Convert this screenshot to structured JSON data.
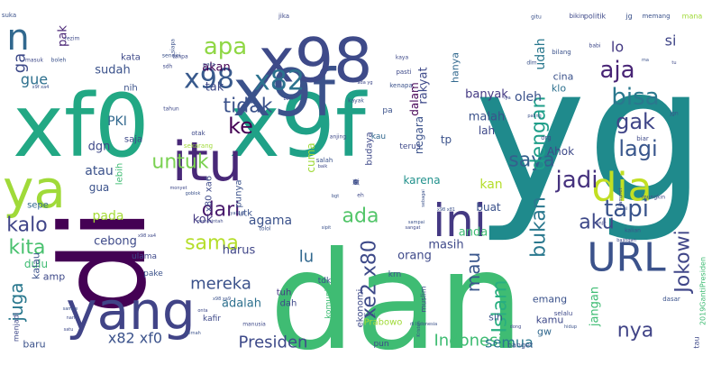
{
  "words": [
    {
      "text": "yg",
      "size": 210,
      "rot": 0,
      "color": "#1f8a8c"
    },
    {
      "text": "dan",
      "size": 150,
      "rot": 0,
      "color": "#3fbc73"
    },
    {
      "text": "xf0",
      "size": 96,
      "rot": 0,
      "color": "#22a884"
    },
    {
      "text": "x9f",
      "size": 96,
      "rot": 0,
      "color": "#1fa187"
    },
    {
      "text": "x9f",
      "size": 72,
      "rot": 0,
      "color": "#3b528b"
    },
    {
      "text": "x98",
      "size": 68,
      "rot": 0,
      "color": "#3e4a89"
    },
    {
      "text": "di",
      "size": 130,
      "rot": 90,
      "color": "#440154"
    },
    {
      "text": "itu",
      "size": 60,
      "rot": 0,
      "color": "#482878"
    },
    {
      "text": "ya",
      "size": 58,
      "rot": 0,
      "color": "#a0da39"
    },
    {
      "text": "yang",
      "size": 58,
      "rot": 0,
      "color": "#414487"
    },
    {
      "text": "ini",
      "size": 50,
      "rot": 0,
      "color": "#443983"
    },
    {
      "text": "dia",
      "size": 44,
      "rot": 0,
      "color": "#c2df23"
    },
    {
      "text": "URL",
      "size": 44,
      "rot": 0,
      "color": "#3b528b"
    },
    {
      "text": "n",
      "size": 40,
      "rot": 0,
      "color": "#31688e"
    },
    {
      "text": "x98",
      "size": 30,
      "rot": 0,
      "color": "#38598c"
    },
    {
      "text": "x82",
      "size": 30,
      "rot": 0,
      "color": "#2c728e"
    },
    {
      "text": "apa",
      "size": 26,
      "rot": 0,
      "color": "#8fd744"
    },
    {
      "text": "aja",
      "size": 26,
      "rot": 0,
      "color": "#482475"
    },
    {
      "text": "bisa",
      "size": 26,
      "rot": 0,
      "color": "#2a788e"
    },
    {
      "text": "gak",
      "size": 24,
      "rot": 0,
      "color": "#404688"
    },
    {
      "text": "lagi",
      "size": 24,
      "rot": 0,
      "color": "#39568c"
    },
    {
      "text": "jadi",
      "size": 26,
      "rot": 0,
      "color": "#46327e"
    },
    {
      "text": "tapi",
      "size": 26,
      "rot": 0,
      "color": "#3a548c"
    },
    {
      "text": "saya",
      "size": 22,
      "rot": 0,
      "color": "#34608d"
    },
    {
      "text": "ke",
      "size": 24,
      "rot": 0,
      "color": "#440154"
    },
    {
      "text": "tidak",
      "size": 22,
      "rot": 0,
      "color": "#3b528b"
    },
    {
      "text": "untuk",
      "size": 22,
      "rot": 0,
      "color": "#7ad151"
    },
    {
      "text": "dari",
      "size": 22,
      "rot": 0,
      "color": "#481a6c"
    },
    {
      "text": "ada",
      "size": 22,
      "rot": 0,
      "color": "#52c569"
    },
    {
      "text": "aku",
      "size": 22,
      "rot": 0,
      "color": "#3e4989"
    },
    {
      "text": "kalo",
      "size": 22,
      "rot": 0,
      "color": "#404588"
    },
    {
      "text": "kita",
      "size": 22,
      "rot": 0,
      "color": "#48c16e"
    },
    {
      "text": "sama",
      "size": 22,
      "rot": 0,
      "color": "#b5de2b"
    },
    {
      "text": "mereka",
      "size": 18,
      "rot": 0,
      "color": "#3b528b"
    },
    {
      "text": "Indonesia",
      "size": 18,
      "rot": 0,
      "color": "#3fbc73"
    },
    {
      "text": "Presiden",
      "size": 18,
      "rot": 0,
      "color": "#3e4a89"
    },
    {
      "text": "semua",
      "size": 16,
      "rot": 0,
      "color": "#2a788e"
    },
    {
      "text": "nya",
      "size": 22,
      "rot": 0,
      "color": "#414487"
    },
    {
      "text": "x82 xf0",
      "size": 16,
      "rot": 0,
      "color": "#3b528b"
    },
    {
      "text": "dengan",
      "size": 22,
      "rot": 90,
      "color": "#1f9e89"
    },
    {
      "text": "bukan",
      "size": 22,
      "rot": 90,
      "color": "#2a788e"
    },
    {
      "text": "Islam",
      "size": 22,
      "rot": 90,
      "color": "#28ae80"
    },
    {
      "text": "mau",
      "size": 20,
      "rot": 90,
      "color": "#39568c"
    },
    {
      "text": "xe2 x80",
      "size": 22,
      "rot": 90,
      "color": "#3e4a89"
    },
    {
      "text": "Jokowi",
      "size": 22,
      "rot": 90,
      "color": "#404688"
    },
    {
      "text": "juga",
      "size": 20,
      "rot": 90,
      "color": "#2a788e"
    },
    {
      "text": "gue",
      "size": 16,
      "rot": 0,
      "color": "#2d708e"
    },
    {
      "text": "ga",
      "size": 18,
      "rot": 90,
      "color": "#3e4a89"
    },
    {
      "text": "pak",
      "size": 13,
      "rot": 90,
      "color": "#482475"
    },
    {
      "text": "sudah",
      "size": 13,
      "rot": 0,
      "color": "#3b528b"
    },
    {
      "text": "akan",
      "size": 13,
      "rot": 0,
      "color": "#440154"
    },
    {
      "text": "tak",
      "size": 13,
      "rot": 0,
      "color": "#3e4989"
    },
    {
      "text": "oleh",
      "size": 14,
      "rot": 0,
      "color": "#3b528b"
    },
    {
      "text": "udah",
      "size": 14,
      "rot": 90,
      "color": "#2a788e"
    },
    {
      "text": "lo",
      "size": 16,
      "rot": 0,
      "color": "#443983"
    },
    {
      "text": "si",
      "size": 16,
      "rot": 0,
      "color": "#404688"
    },
    {
      "text": "atau",
      "size": 14,
      "rot": 0,
      "color": "#3b528b"
    },
    {
      "text": "pada",
      "size": 14,
      "rot": 0,
      "color": "#a5db36"
    },
    {
      "text": "dulu",
      "size": 12,
      "rot": 0,
      "color": "#3fbc73"
    },
    {
      "text": "PKI",
      "size": 14,
      "rot": 0,
      "color": "#31688e"
    },
    {
      "text": "dgn",
      "size": 13,
      "rot": 0,
      "color": "#3e4989"
    },
    {
      "text": "gua",
      "size": 12,
      "rot": 0,
      "color": "#3b528b"
    },
    {
      "text": "cebong",
      "size": 13,
      "rot": 0,
      "color": "#3e4a89"
    },
    {
      "text": "kok",
      "size": 13,
      "rot": 0,
      "color": "#443983"
    },
    {
      "text": "agama",
      "size": 14,
      "rot": 0,
      "color": "#3b528b"
    },
    {
      "text": "orang",
      "size": 13,
      "rot": 0,
      "color": "#3e4989"
    },
    {
      "text": "adalah",
      "size": 13,
      "rot": 0,
      "color": "#2d708e"
    },
    {
      "text": "harus",
      "size": 13,
      "rot": 0,
      "color": "#404688"
    },
    {
      "text": "anda",
      "size": 13,
      "rot": 0,
      "color": "#3fbc73"
    },
    {
      "text": "masih",
      "size": 13,
      "rot": 0,
      "color": "#3e4989"
    },
    {
      "text": "buat",
      "size": 12,
      "rot": 0,
      "color": "#3b528b"
    },
    {
      "text": "karena",
      "size": 12,
      "rot": 0,
      "color": "#21918c"
    },
    {
      "text": "negara",
      "size": 12,
      "rot": 90,
      "color": "#3b528b"
    },
    {
      "text": "dalam",
      "size": 12,
      "rot": 90,
      "color": "#440154"
    },
    {
      "text": "rakyat",
      "size": 13,
      "rot": 90,
      "color": "#3e4989"
    },
    {
      "text": "hanya",
      "size": 11,
      "rot": 90,
      "color": "#31688e"
    },
    {
      "text": "banyak",
      "size": 13,
      "rot": 0,
      "color": "#443983"
    },
    {
      "text": "malah",
      "size": 13,
      "rot": 0,
      "color": "#3b528b"
    },
    {
      "text": "lah",
      "size": 12,
      "rot": 0,
      "color": "#3e4989"
    },
    {
      "text": "cina",
      "size": 11,
      "rot": 0,
      "color": "#3b528b"
    },
    {
      "text": "klo",
      "size": 11,
      "rot": 0,
      "color": "#2d708e"
    },
    {
      "text": "Ahok",
      "size": 12,
      "rot": 0,
      "color": "#3e4a89"
    },
    {
      "text": "kan",
      "size": 14,
      "rot": 0,
      "color": "#b5de2b"
    },
    {
      "text": "jangan",
      "size": 13,
      "rot": 90,
      "color": "#3fbc73"
    },
    {
      "text": "emang",
      "size": 11,
      "rot": 0,
      "color": "#3b528b"
    },
    {
      "text": "kamu",
      "size": 11,
      "rot": 0,
      "color": "#3e4989"
    },
    {
      "text": "lu",
      "size": 18,
      "rot": 0,
      "color": "#31688e"
    },
    {
      "text": "sih",
      "size": 11,
      "rot": 0,
      "color": "#3b528b"
    },
    {
      "text": "tuh",
      "size": 10,
      "rot": 0,
      "color": "#443983"
    },
    {
      "text": "dah",
      "size": 10,
      "rot": 0,
      "color": "#3e4989"
    },
    {
      "text": "komunis",
      "size": 9,
      "rot": 90,
      "color": "#3fbc73"
    },
    {
      "text": "ekonomi",
      "size": 10,
      "rot": 90,
      "color": "#3e4989"
    },
    {
      "text": "tdk",
      "size": 9,
      "rot": 0,
      "color": "#3b528b"
    },
    {
      "text": "cuma",
      "size": 12,
      "rot": 90,
      "color": "#a0da39"
    },
    {
      "text": "budaya",
      "size": 10,
      "rot": 90,
      "color": "#3e4989"
    },
    {
      "text": "tp",
      "size": 12,
      "rot": 0,
      "color": "#3b528b"
    },
    {
      "text": "terus",
      "size": 9,
      "rot": 0,
      "color": "#3e4989"
    },
    {
      "text": "kau",
      "size": 9,
      "rot": 0,
      "color": "#31688e"
    },
    {
      "text": "pa",
      "size": 9,
      "rot": 0,
      "color": "#3b528b"
    },
    {
      "text": "lebih",
      "size": 10,
      "rot": 90,
      "color": "#3fbc73"
    },
    {
      "text": "kata",
      "size": 10,
      "rot": 0,
      "color": "#3e4989"
    },
    {
      "text": "nih",
      "size": 10,
      "rot": 0,
      "color": "#3b528b"
    },
    {
      "text": "saja",
      "size": 10,
      "rot": 0,
      "color": "#3e4989"
    },
    {
      "text": "punya",
      "size": 10,
      "rot": 90,
      "color": "#3b528b"
    },
    {
      "text": "x80 xa6",
      "size": 10,
      "rot": 90,
      "color": "#3e4a89"
    },
    {
      "text": "utk",
      "size": 10,
      "rot": 0,
      "color": "#3b528b"
    },
    {
      "text": "amp",
      "size": 11,
      "rot": 0,
      "color": "#3e4989"
    },
    {
      "text": "sepe",
      "size": 10,
      "rot": 0,
      "color": "#31688e"
    },
    {
      "text": "kalau",
      "size": 11,
      "rot": 90,
      "color": "#3b528b"
    },
    {
      "text": "ulama",
      "size": 9,
      "rot": 0,
      "color": "#3e4989"
    },
    {
      "text": "pake",
      "size": 9,
      "rot": 0,
      "color": "#3b528b"
    },
    {
      "text": "menjadi",
      "size": 8,
      "rot": 90,
      "color": "#3e4989"
    },
    {
      "text": "baru",
      "size": 11,
      "rot": 0,
      "color": "#3b528b"
    },
    {
      "text": "kafir",
      "size": 9,
      "rot": 0,
      "color": "#3e4989"
    },
    {
      "text": "Prabowo",
      "size": 10,
      "rot": 0,
      "color": "#a0da39"
    },
    {
      "text": "pun",
      "size": 9,
      "rot": 0,
      "color": "#3e4989"
    },
    {
      "text": "gw",
      "size": 11,
      "rot": 0,
      "color": "#31688e"
    },
    {
      "text": "krn",
      "size": 9,
      "rot": 0,
      "color": "#3b528b"
    },
    {
      "text": "muslim",
      "size": 8,
      "rot": 90,
      "color": "#3e4989"
    },
    {
      "text": "banget",
      "size": 8,
      "rot": 0,
      "color": "#3b528b"
    },
    {
      "text": "selalu",
      "size": 7,
      "rot": 0,
      "color": "#3e4989"
    },
    {
      "text": "2019GantiPresiden",
      "size": 8,
      "rot": 90,
      "color": "#3fbc73"
    },
    {
      "text": "tau",
      "size": 8,
      "rot": 90,
      "color": "#3e4989"
    },
    {
      "text": "jg",
      "size": 8,
      "rot": 0,
      "color": "#3b528b"
    },
    {
      "text": "politik",
      "size": 8,
      "rot": 0,
      "color": "#3e4989"
    },
    {
      "text": "memang",
      "size": 7,
      "rot": 0,
      "color": "#3b528b"
    },
    {
      "text": "bikin",
      "size": 7,
      "rot": 0,
      "color": "#3e4989"
    },
    {
      "text": "mana",
      "size": 8,
      "rot": 0,
      "color": "#a0da39"
    },
    {
      "text": "jika",
      "size": 7,
      "rot": 0,
      "color": "#3e4989"
    },
    {
      "text": "bilang",
      "size": 7,
      "rot": 0,
      "color": "#3b528b"
    },
    {
      "text": "pasti",
      "size": 7,
      "rot": 0,
      "color": "#3e4989"
    },
    {
      "text": "kenapa",
      "size": 7,
      "rot": 0,
      "color": "#3b528b"
    },
    {
      "text": "biar",
      "size": 7,
      "rot": 0,
      "color": "#3e4989"
    },
    {
      "text": "dasar",
      "size": 7,
      "rot": 0,
      "color": "#3b528b"
    },
    {
      "text": "otak",
      "size": 7,
      "rot": 0,
      "color": "#3e4989"
    },
    {
      "text": "sekarang",
      "size": 7,
      "rot": 0,
      "color": "#a0da39"
    },
    {
      "text": "salah",
      "size": 7,
      "rot": 0,
      "color": "#3b528b"
    },
    {
      "text": "anjing",
      "size": 6,
      "rot": 0,
      "color": "#3e4989"
    },
    {
      "text": "kayak",
      "size": 6,
      "rot": 0,
      "color": "#3b528b"
    },
    {
      "text": "tahun",
      "size": 6,
      "rot": 0,
      "color": "#3e4989"
    },
    {
      "text": "sendiri",
      "size": 6,
      "rot": 0,
      "color": "#3b528b"
    },
    {
      "text": "tanpa",
      "size": 6,
      "rot": 0,
      "color": "#3e4989"
    },
    {
      "text": "boleh",
      "size": 6,
      "rot": 0,
      "color": "#3b528b"
    },
    {
      "text": "masuk",
      "size": 6,
      "rot": 0,
      "color": "#3e4989"
    },
    {
      "text": "suka",
      "size": 7,
      "rot": 0,
      "color": "#3b528b"
    },
    {
      "text": "rezim",
      "size": 6,
      "rot": 0,
      "color": "#3e4989"
    },
    {
      "text": "siapa",
      "size": 6,
      "rot": 90,
      "color": "#3b528b"
    },
    {
      "text": "sdh",
      "size": 6,
      "rot": 0,
      "color": "#3e4989"
    },
    {
      "text": "para",
      "size": 6,
      "rot": 0,
      "color": "#3b528b"
    },
    {
      "text": "kaya",
      "size": 6,
      "rot": 0,
      "color": "#3e4989"
    },
    {
      "text": "gitu",
      "size": 6,
      "rot": 0,
      "color": "#3b528b"
    },
    {
      "text": "babi",
      "size": 6,
      "rot": 0,
      "color": "#3e4989"
    },
    {
      "text": "dlm",
      "size": 6,
      "rot": 0,
      "color": "#3b528b"
    },
    {
      "text": "ada yg",
      "size": 5,
      "rot": 0,
      "color": "#3e4989"
    },
    {
      "text": "paling",
      "size": 5,
      "rot": 0,
      "color": "#3b528b"
    },
    {
      "text": "org",
      "size": 7,
      "rot": 0,
      "color": "#3e4989"
    },
    {
      "text": "jgn",
      "size": 6,
      "rot": 0,
      "color": "#3b528b"
    },
    {
      "text": "monyet",
      "size": 5,
      "rot": 0,
      "color": "#3e4989"
    },
    {
      "text": "goblok",
      "size": 5,
      "rot": 0,
      "color": "#3b528b"
    },
    {
      "text": "baik",
      "size": 5,
      "rot": 0,
      "color": "#3e4989"
    },
    {
      "text": "bgt",
      "size": 5,
      "rot": 0,
      "color": "#3b528b"
    },
    {
      "text": "eh",
      "size": 6,
      "rot": 0,
      "color": "#3e4989"
    },
    {
      "text": "sebagai",
      "size": 5,
      "rot": 90,
      "color": "#3b528b"
    },
    {
      "text": "kampret",
      "size": 5,
      "rot": 90,
      "color": "#3e4989"
    },
    {
      "text": "pa ai",
      "size": 5,
      "rot": 0,
      "color": "#3b528b"
    },
    {
      "text": "mungkin",
      "size": 6,
      "rot": 0,
      "color": "#3e4989"
    },
    {
      "text": "yahudi",
      "size": 5,
      "rot": 0,
      "color": "#3b528b"
    },
    {
      "text": "pemerintah",
      "size": 5,
      "rot": 0,
      "color": "#3e4989"
    },
    {
      "text": "sipit",
      "size": 5,
      "rot": 0,
      "color": "#3b528b"
    },
    {
      "text": "sangat",
      "size": 5,
      "rot": 0,
      "color": "#3e4989"
    },
    {
      "text": "sampai",
      "size": 5,
      "rot": 0,
      "color": "#3b528b"
    },
    {
      "text": "anjir",
      "size": 5,
      "rot": 0,
      "color": "#3e4989"
    },
    {
      "text": "kalian",
      "size": 6,
      "rot": 0,
      "color": "#3b528b"
    },
    {
      "text": "bajingan",
      "size": 5,
      "rot": 0,
      "color": "#3e4989"
    },
    {
      "text": "tolol",
      "size": 6,
      "rot": 0,
      "color": "#3b528b"
    },
    {
      "text": "manusia",
      "size": 6,
      "rot": 0,
      "color": "#3e4989"
    },
    {
      "text": "di Indonesia",
      "size": 5,
      "rot": 0,
      "color": "#3b528b"
    },
    {
      "text": "dong",
      "size": 5,
      "rot": 0,
      "color": "#3e4989"
    },
    {
      "text": "hidup",
      "size": 5,
      "rot": 0,
      "color": "#3b528b"
    },
    {
      "text": "nanti",
      "size": 5,
      "rot": 0,
      "color": "#3e4989"
    },
    {
      "text": "sampe",
      "size": 5,
      "rot": 0,
      "color": "#3b528b"
    },
    {
      "text": "satu",
      "size": 5,
      "rot": 0,
      "color": "#3e4989"
    },
    {
      "text": "pernah",
      "size": 5,
      "rot": 0,
      "color": "#3b528b"
    },
    {
      "text": "onta",
      "size": 5,
      "rot": 0,
      "color": "#3e4989"
    },
    {
      "text": "x9f xa4",
      "size": 5,
      "rot": 0,
      "color": "#3b528b"
    },
    {
      "text": "kami",
      "size": 5,
      "rot": 0,
      "color": "#3e4989"
    },
    {
      "text": "Kristen",
      "size": 5,
      "rot": 90,
      "color": "#3b528b"
    },
    {
      "text": "bom",
      "size": 5,
      "rot": 0,
      "color": "#3e4989"
    },
    {
      "text": "x98 xa9",
      "size": 5,
      "rot": 0,
      "color": "#3b528b"
    },
    {
      "text": "x98 xa4",
      "size": 5,
      "rot": 0,
      "color": "#3e4989"
    },
    {
      "text": "x98 x81",
      "size": 5,
      "rot": 0,
      "color": "#3b528b"
    },
    {
      "text": "iya",
      "size": 5,
      "rot": 0,
      "color": "#3e4989"
    },
    {
      "text": "ma",
      "size": 5,
      "rot": 0,
      "color": "#3b528b"
    },
    {
      "text": "tu",
      "size": 5,
      "rot": 0,
      "color": "#3e4989"
    },
    {
      "text": "dg",
      "size": 5,
      "rot": 90,
      "color": "#3b528b"
    },
    {
      "text": "ni",
      "size": 8,
      "rot": 0,
      "color": "#3e4989"
    },
    {
      "text": "dr",
      "size": 7,
      "rot": 0,
      "color": "#3b528b"
    },
    {
      "text": "jd",
      "size": 7,
      "rot": 90,
      "color": "#3e4989"
    }
  ]
}
